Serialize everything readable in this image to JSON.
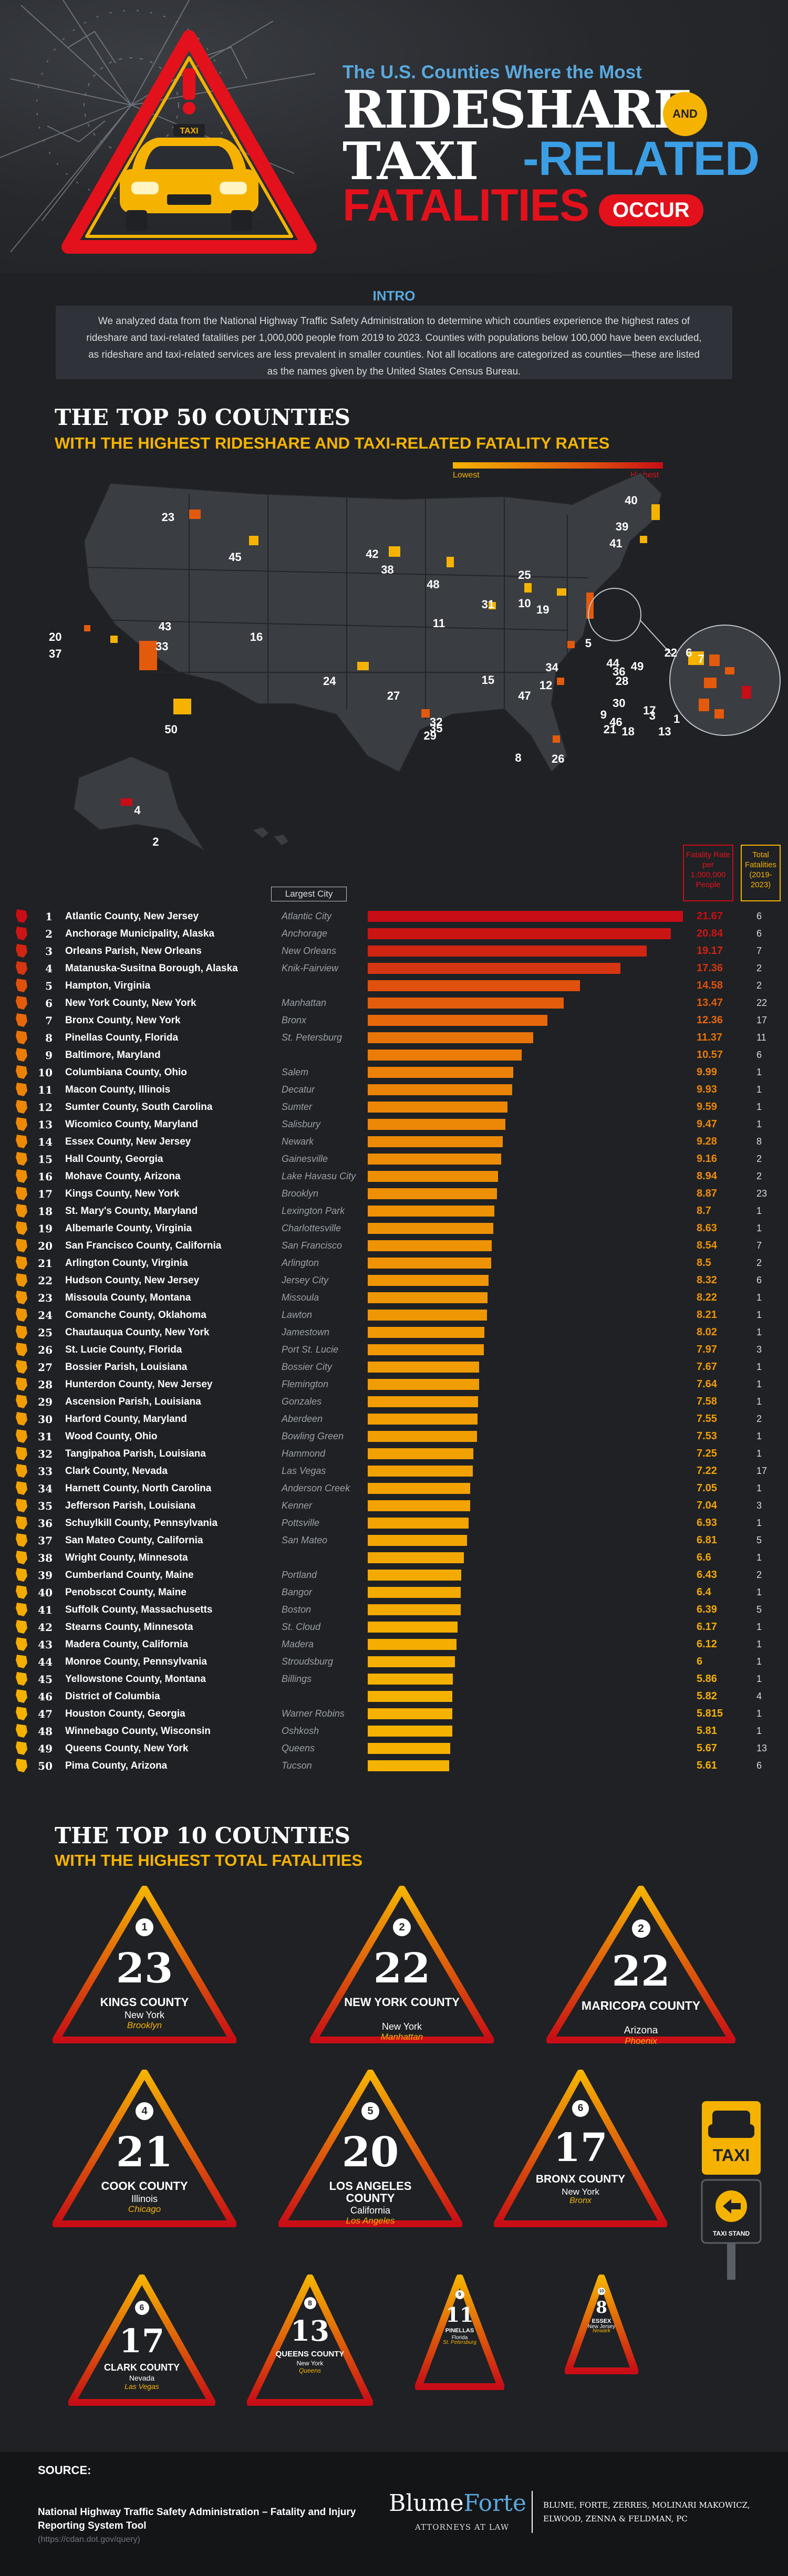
{
  "hero": {
    "subtitle": "The U.S. Counties Where the Most",
    "line1": "RIDESHARE",
    "and": "AND",
    "line2a": "TAXI",
    "line2b": "-RELATED",
    "line3": "FATALITIES",
    "occur": "OCCUR",
    "taxi_sign_text": "TAXI"
  },
  "intro": {
    "title": "INTRO",
    "text": "We analyzed data from the National Highway Traffic Safety Administration to determine which counties experience the highest rates of rideshare and taxi-related fatalities per 1,000,000 people from 2019 to 2023. Counties with populations below 100,000 have been excluded, as rideshare and taxi-related services are less prevalent in smaller counties. Not all locations are categorized as counties—these are listed as the names given by the United States Census Bureau."
  },
  "section1": {
    "title": "THE TOP 50 COUNTIES",
    "subtitle": "WITH THE HIGHEST RIDESHARE AND TAXI-RELATED FATALITY RATES",
    "legend_low": "Lowest",
    "legend_high": "Highest"
  },
  "table_headers": {
    "largest_city": "Largest City",
    "rate": "Fatality Rate per 1,000,000 People",
    "fatalities": "Total Fatalities (2019-2023)"
  },
  "chart_data": {
    "type": "bar",
    "orientation": "horizontal",
    "title": "THE TOP 50 COUNTIES WITH THE HIGHEST RIDESHARE AND TAXI-RELATED FATALITY RATES",
    "value_label": "Fatality Rate per 1,000,000 People",
    "rows": [
      {
        "rank": "1",
        "county": "Atlantic County, New Jersey",
        "city": "Atlantic City",
        "rate": 21.67,
        "fatalities": "6"
      },
      {
        "rank": "2",
        "county": "Anchorage Municipality, Alaska",
        "city": "Anchorage",
        "rate": 20.84,
        "fatalities": "6"
      },
      {
        "rank": "3",
        "county": "Orleans Parish, New Orleans",
        "city": "New Orleans",
        "rate": 19.17,
        "fatalities": "7"
      },
      {
        "rank": "4",
        "county": "Matanuska-Susitna Borough, Alaska",
        "city": "Knik-Fairview",
        "rate": 17.36,
        "fatalities": "2"
      },
      {
        "rank": "5",
        "county": "Hampton, Virginia",
        "city": "",
        "rate": 14.58,
        "fatalities": "2"
      },
      {
        "rank": "6",
        "county": "New York County, New York",
        "city": "Manhattan",
        "rate": 13.47,
        "fatalities": "22"
      },
      {
        "rank": "7",
        "county": "Bronx County, New York",
        "city": "Bronx",
        "rate": 12.36,
        "fatalities": "17"
      },
      {
        "rank": "8",
        "county": "Pinellas County, Florida",
        "city": "St. Petersburg",
        "rate": 11.37,
        "fatalities": "11"
      },
      {
        "rank": "9",
        "county": "Baltimore, Maryland",
        "city": "",
        "rate": 10.57,
        "fatalities": "6"
      },
      {
        "rank": "10",
        "county": "Columbiana County, Ohio",
        "city": "Salem",
        "rate": 9.99,
        "fatalities": "1"
      },
      {
        "rank": "11",
        "county": "Macon County, Illinois",
        "city": "Decatur",
        "rate": 9.93,
        "fatalities": "1"
      },
      {
        "rank": "12",
        "county": "Sumter County, South Carolina",
        "city": "Sumter",
        "rate": 9.59,
        "fatalities": "1"
      },
      {
        "rank": "13",
        "county": "Wicomico County, Maryland",
        "city": "Salisbury",
        "rate": 9.47,
        "fatalities": "1"
      },
      {
        "rank": "14",
        "county": "Essex County, New Jersey",
        "city": "Newark",
        "rate": 9.28,
        "fatalities": "8"
      },
      {
        "rank": "15",
        "county": "Hall County, Georgia",
        "city": "Gainesville",
        "rate": 9.16,
        "fatalities": "2"
      },
      {
        "rank": "16",
        "county": "Mohave County, Arizona",
        "city": "Lake Havasu City",
        "rate": 8.94,
        "fatalities": "2"
      },
      {
        "rank": "17",
        "county": "Kings County, New York",
        "city": "Brooklyn",
        "rate": 8.87,
        "fatalities": "23"
      },
      {
        "rank": "18",
        "county": "St. Mary's County, Maryland",
        "city": "Lexington Park",
        "rate": 8.7,
        "fatalities": "1"
      },
      {
        "rank": "19",
        "county": "Albemarle County, Virginia",
        "city": "Charlottesville",
        "rate": 8.63,
        "fatalities": "1"
      },
      {
        "rank": "20",
        "county": "San Francisco County, California",
        "city": "San Francisco",
        "rate": 8.54,
        "fatalities": "7"
      },
      {
        "rank": "21",
        "county": "Arlington County, Virginia",
        "city": "Arlington",
        "rate": 8.5,
        "fatalities": "2"
      },
      {
        "rank": "22",
        "county": "Hudson County, New Jersey",
        "city": "Jersey City",
        "rate": 8.32,
        "fatalities": "6"
      },
      {
        "rank": "23",
        "county": "Missoula County, Montana",
        "city": "Missoula",
        "rate": 8.22,
        "fatalities": "1"
      },
      {
        "rank": "24",
        "county": "Comanche County, Oklahoma",
        "city": "Lawton",
        "rate": 8.21,
        "fatalities": "1"
      },
      {
        "rank": "25",
        "county": "Chautauqua County, New York",
        "city": "Jamestown",
        "rate": 8.02,
        "fatalities": "1"
      },
      {
        "rank": "26",
        "county": "St. Lucie County, Florida",
        "city": "Port St. Lucie",
        "rate": 7.97,
        "fatalities": "3"
      },
      {
        "rank": "27",
        "county": "Bossier Parish, Louisiana",
        "city": "Bossier City",
        "rate": 7.67,
        "fatalities": "1"
      },
      {
        "rank": "28",
        "county": "Hunterdon County, New Jersey",
        "city": "Flemington",
        "rate": 7.64,
        "fatalities": "1"
      },
      {
        "rank": "29",
        "county": "Ascension Parish, Louisiana",
        "city": "Gonzales",
        "rate": 7.58,
        "fatalities": "1"
      },
      {
        "rank": "30",
        "county": "Harford County, Maryland",
        "city": "Aberdeen",
        "rate": 7.55,
        "fatalities": "2"
      },
      {
        "rank": "31",
        "county": "Wood County, Ohio",
        "city": "Bowling Green",
        "rate": 7.53,
        "fatalities": "1"
      },
      {
        "rank": "32",
        "county": "Tangipahoa Parish, Louisiana",
        "city": "Hammond",
        "rate": 7.25,
        "fatalities": "1"
      },
      {
        "rank": "33",
        "county": "Clark County, Nevada",
        "city": "Las Vegas",
        "rate": 7.22,
        "fatalities": "17"
      },
      {
        "rank": "34",
        "county": "Harnett County, North Carolina",
        "city": "Anderson Creek",
        "rate": 7.05,
        "fatalities": "1"
      },
      {
        "rank": "35",
        "county": "Jefferson Parish, Louisiana",
        "city": "Kenner",
        "rate": 7.04,
        "fatalities": "3"
      },
      {
        "rank": "36",
        "county": "Schuylkill County, Pennsylvania",
        "city": "Pottsville",
        "rate": 6.93,
        "fatalities": "1"
      },
      {
        "rank": "37",
        "county": "San Mateo County, California",
        "city": "San Mateo",
        "rate": 6.81,
        "fatalities": "5"
      },
      {
        "rank": "38",
        "county": "Wright County, Minnesota",
        "city": "",
        "rate": 6.6,
        "fatalities": "1"
      },
      {
        "rank": "39",
        "county": "Cumberland County, Maine",
        "city": "Portland",
        "rate": 6.43,
        "fatalities": "2"
      },
      {
        "rank": "40",
        "county": "Penobscot County, Maine",
        "city": "Bangor",
        "rate": 6.4,
        "fatalities": "1"
      },
      {
        "rank": "41",
        "county": "Suffolk County, Massachusetts",
        "city": "Boston",
        "rate": 6.39,
        "fatalities": "5"
      },
      {
        "rank": "42",
        "county": "Stearns County, Minnesota",
        "city": "St. Cloud",
        "rate": 6.17,
        "fatalities": "1"
      },
      {
        "rank": "43",
        "county": "Madera County, California",
        "city": "Madera",
        "rate": 6.12,
        "fatalities": "1"
      },
      {
        "rank": "44",
        "county": "Monroe County, Pennsylvania",
        "city": "Stroudsburg",
        "rate": 6.0,
        "fatalities": "1"
      },
      {
        "rank": "45",
        "county": "Yellowstone County, Montana",
        "city": "Billings",
        "rate": 5.86,
        "fatalities": "1"
      },
      {
        "rank": "46",
        "county": "District of Columbia",
        "city": "",
        "rate": 5.82,
        "fatalities": "4"
      },
      {
        "rank": "47",
        "county": "Houston County, Georgia",
        "city": "Warner Robins",
        "rate": 5.815,
        "fatalities": "1"
      },
      {
        "rank": "48",
        "county": "Winnebago County, Wisconsin",
        "city": "Oshkosh",
        "rate": 5.81,
        "fatalities": "1"
      },
      {
        "rank": "49",
        "county": "Queens County, New York",
        "city": "Queens",
        "rate": 5.67,
        "fatalities": "13"
      },
      {
        "rank": "50",
        "county": "Pima County, Arizona",
        "city": "Tucson",
        "rate": 5.61,
        "fatalities": "6"
      }
    ]
  },
  "rate_labels": [
    "21.67",
    "20.84",
    "19.17",
    "17.36",
    "14.58",
    "13.47",
    "12.36",
    "11.37",
    "10.57",
    "9.99",
    "9.93",
    "9.59",
    "9.47",
    "9.28",
    "9.16",
    "8.94",
    "8.87",
    "8.7",
    "8.63",
    "8.54",
    "8.5",
    "8.32",
    "8.22",
    "8.21",
    "8.02",
    "7.97",
    "7.67",
    "7.64",
    "7.58",
    "7.55",
    "7.53",
    "7.25",
    "7.22",
    "7.05",
    "7.04",
    "6.93",
    "6.81",
    "6.6",
    "6.43",
    "6.4",
    "6.39",
    "6.17",
    "6.12",
    "6",
    "5.86",
    "5.82",
    "5.815",
    "5.81",
    "5.67",
    "5.61"
  ],
  "map_labels": [
    "23",
    "45",
    "42",
    "38",
    "48",
    "40",
    "39",
    "41",
    "25",
    "31",
    "10",
    "11",
    "19",
    "5",
    "16",
    "33",
    "43",
    "20",
    "37",
    "24",
    "27",
    "15",
    "12",
    "34",
    "47",
    "32",
    "29",
    "35",
    "50",
    "4",
    "2",
    "8",
    "26",
    "22",
    "6",
    "7",
    "44",
    "36",
    "28",
    "49",
    "17",
    "30",
    "9",
    "21",
    "46",
    "18",
    "13",
    "3",
    "1"
  ],
  "section2": {
    "title": "THE TOP 10 COUNTIES",
    "subtitle": "WITH THE HIGHEST TOTAL FATALITIES",
    "items": [
      {
        "rank": "1",
        "value": "23",
        "county": "KINGS COUNTY",
        "state": "New York",
        "city": "Brooklyn"
      },
      {
        "rank": "2",
        "value": "22",
        "county": "NEW YORK COUNTY",
        "state": "New York",
        "city": "Manhattan"
      },
      {
        "rank": "2",
        "value": "22",
        "county": "MARICOPA COUNTY",
        "state": "Arizona",
        "city": "Phoenix"
      },
      {
        "rank": "4",
        "value": "21",
        "county": "COOK COUNTY",
        "state": "Illinois",
        "city": "Chicago"
      },
      {
        "rank": "5",
        "value": "20",
        "county": "LOS ANGELES COUNTY",
        "state": "California",
        "city": "Los Angeles"
      },
      {
        "rank": "6",
        "value": "17",
        "county": "BRONX COUNTY",
        "state": "New York",
        "city": "Bronx"
      },
      {
        "rank": "6",
        "value": "17",
        "county": "CLARK COUNTY",
        "state": "Nevada",
        "city": "Las Vegas"
      },
      {
        "rank": "8",
        "value": "13",
        "county": "QUEENS COUNTY",
        "state": "New York",
        "city": "Queens"
      },
      {
        "rank": "9",
        "value": "11",
        "county": "PINELLAS",
        "state": "Florida",
        "city": "St. Petersburg"
      },
      {
        "rank": "10",
        "value": "8",
        "county": "ESSEX",
        "state": "New Jersey",
        "city": "Newark"
      }
    ]
  },
  "sign": {
    "title": "TAXI",
    "stand": "TAXI STAND"
  },
  "footer": {
    "source_label": "SOURCE:",
    "source_line": "National Highway Traffic Safety Administration – Fatality and Injury Reporting System Tool",
    "source_url": "(https://cdan.dot.gov/query)",
    "logo_a": "Blume",
    "logo_b": "Forte",
    "logo_sub": "ATTORNEYS AT LAW",
    "firm": "BLUME, FORTE, ZERRES, MOLINARI MAKOWICZ, ELWOOD, ZENNA & FELDMAN, PC"
  },
  "colors": {
    "red": "#e3111c",
    "yellow": "#f5b300",
    "blue": "#3c9ee4",
    "dark": "#1f2124"
  }
}
